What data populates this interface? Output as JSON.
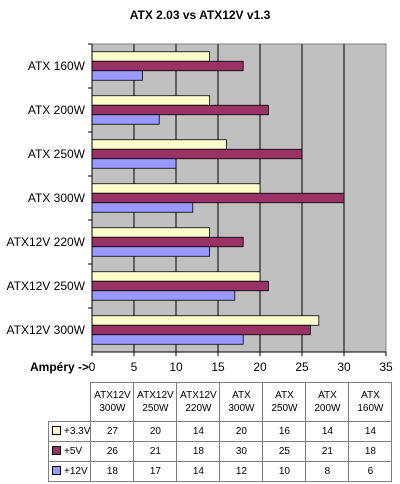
{
  "chart_data": {
    "type": "bar",
    "orientation": "horizontal",
    "title": "ATX 2.03 vs ATX12V v1.3",
    "xlabel": "Ampéry ->",
    "xlim": [
      0,
      35
    ],
    "xticks": [
      0,
      5,
      10,
      15,
      20,
      25,
      30,
      35
    ],
    "grid": true,
    "categories": [
      "ATX 160W",
      "ATX 200W",
      "ATX 250W",
      "ATX 300W",
      "ATX12V 220W",
      "ATX12V 250W",
      "ATX12V 300W"
    ],
    "series": [
      {
        "name": "+3.3V",
        "color": "#ffffcc",
        "values": [
          14,
          14,
          16,
          20,
          14,
          20,
          27
        ]
      },
      {
        "name": "+5V",
        "color": "#993366",
        "values": [
          18,
          21,
          25,
          30,
          18,
          21,
          26
        ]
      },
      {
        "name": "+12V",
        "color": "#9999ff",
        "values": [
          6,
          8,
          10,
          12,
          14,
          17,
          18
        ]
      }
    ],
    "plot_background": "#c0c0c0",
    "table": {
      "columns": [
        [
          "ATX12V",
          "300W"
        ],
        [
          "ATX12V",
          "250W"
        ],
        [
          "ATX12V",
          "220W"
        ],
        [
          "ATX",
          "300W"
        ],
        [
          "ATX",
          "250W"
        ],
        [
          "ATX",
          "200W"
        ],
        [
          "ATX",
          "160W"
        ]
      ],
      "rows": [
        {
          "name": "+3.3V",
          "color": "#ffffcc",
          "values": [
            "27",
            "20",
            "14",
            "20",
            "16",
            "14",
            "14"
          ]
        },
        {
          "name": "+5V",
          "color": "#993366",
          "values": [
            "26",
            "21",
            "18",
            "30",
            "25",
            "21",
            "18"
          ]
        },
        {
          "name": "+12V",
          "color": "#9999ff",
          "values": [
            "18",
            "17",
            "14",
            "12",
            "10",
            "8",
            "6"
          ]
        }
      ]
    }
  }
}
